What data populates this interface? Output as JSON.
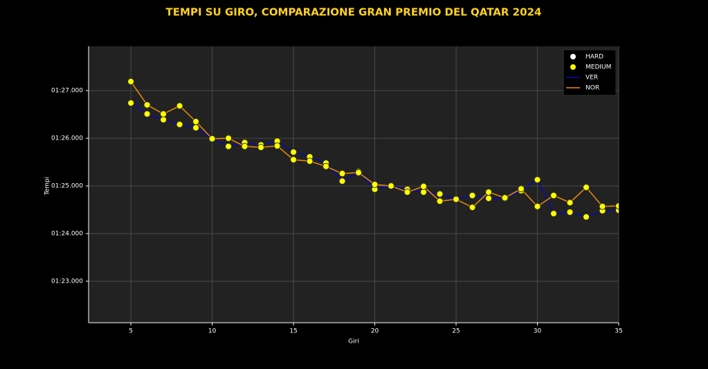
{
  "chart_data": {
    "type": "line",
    "title": "TEMPI SU GIRO, COMPARAZIONE GRAN PREMIO DEL QATAR 2024",
    "x_label": "Giri",
    "y_label": "Tempi",
    "x": [
      5,
      6,
      7,
      8,
      9,
      10,
      11,
      12,
      13,
      14,
      15,
      16,
      17,
      18,
      19,
      20,
      21,
      22,
      23,
      24,
      25,
      26,
      27,
      28,
      29,
      30,
      31,
      32,
      33,
      34,
      35
    ],
    "series": [
      {
        "name": "VER",
        "color": "#0a0ab4",
        "compound": "MEDIUM",
        "values": [
          86.74,
          86.51,
          86.39,
          86.29,
          86.22,
          85.99,
          85.83,
          85.91,
          85.86,
          85.94,
          85.71,
          85.61,
          85.48,
          85.1,
          85.3,
          84.93,
          85.01,
          84.93,
          84.87,
          84.83,
          84.72,
          84.8,
          84.74,
          84.74,
          84.9,
          85.13,
          84.42,
          84.45,
          84.35,
          84.48,
          84.49
        ]
      },
      {
        "name": "NOR",
        "color": "#f08c0a",
        "compound": "MEDIUM",
        "values": [
          87.19,
          86.7,
          86.51,
          86.68,
          86.35,
          85.99,
          86.0,
          85.83,
          85.81,
          85.84,
          85.55,
          85.52,
          85.41,
          85.26,
          85.28,
          85.03,
          85.0,
          84.87,
          84.99,
          84.68,
          84.72,
          84.55,
          84.87,
          84.75,
          84.94,
          84.57,
          84.8,
          84.65,
          84.97,
          84.57,
          84.58
        ]
      }
    ],
    "compounds": [
      {
        "name": "HARD",
        "color": "#ffffff"
      },
      {
        "name": "MEDIUM",
        "color": "#ffff00"
      }
    ],
    "xlim": [
      2.4,
      35
    ],
    "ylim": [
      82.13,
      87.93
    ],
    "xticks": [
      5,
      10,
      15,
      20,
      25,
      30,
      35
    ],
    "yticks": [
      {
        "value": 83,
        "label": "01:23.000"
      },
      {
        "value": 84,
        "label": "01:24.000"
      },
      {
        "value": 85,
        "label": "01:25.000"
      },
      {
        "value": 86,
        "label": "01:26.000"
      },
      {
        "value": 87,
        "label": "01:27.000"
      }
    ],
    "grid": true,
    "legend": "upper right"
  }
}
